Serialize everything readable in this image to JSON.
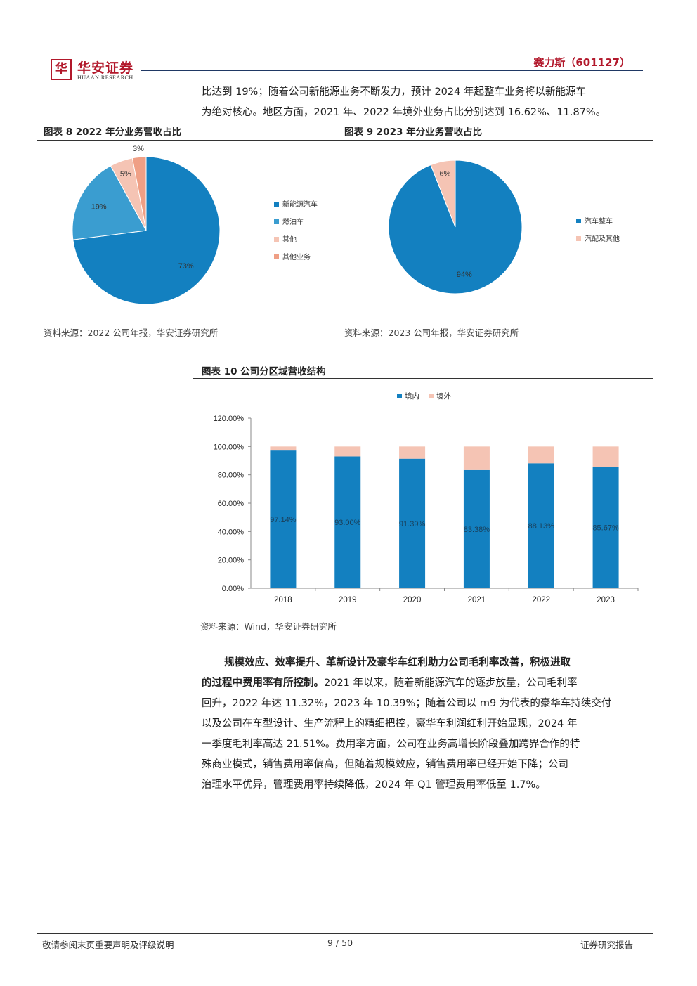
{
  "header": {
    "logo_mark": "华",
    "logo_cn": "华安证券",
    "logo_en": "HUAAN RESEARCH",
    "company": "赛力斯（601127）"
  },
  "intro": {
    "line1": "比达到 19%；随着公司新能源业务不断发力，预计 2024 年起整车业务将以新能源车",
    "line2": "为绝对核心。地区方面，2021 年、2022 年境外业务占比分别达到 16.62%、11.87%。"
  },
  "fig8": {
    "title": "图表 8 2022 年分业务营收占比",
    "source": "资料来源：2022 公司年报，华安证券研究所",
    "chart_data": {
      "type": "pie",
      "labels": [
        "新能源汽车",
        "燃油车",
        "其他",
        "其他业务"
      ],
      "values": [
        73,
        19,
        5,
        3
      ],
      "value_labels": [
        "73%",
        "19%",
        "5%",
        "3%"
      ],
      "colors": [
        "#1380c0",
        "#3a9dd0",
        "#f5c4b4",
        "#ef9f85"
      ],
      "legend_position": "right"
    }
  },
  "fig9": {
    "title": "图表 9 2023 年分业务营收占比",
    "source": "资料来源：2023 公司年报，华安证券研究所",
    "chart_data": {
      "type": "pie",
      "labels": [
        "汽车整车",
        "汽配及其他"
      ],
      "values": [
        94,
        6
      ],
      "value_labels": [
        "94%",
        "6%"
      ],
      "colors": [
        "#1380c0",
        "#f5c4b4"
      ],
      "legend_position": "right"
    }
  },
  "fig10": {
    "title": "图表  10 公司分区域营收结构",
    "source": "资料来源：Wind，华安证券研究所",
    "chart_data": {
      "type": "bar",
      "stacked": true,
      "categories": [
        "2018",
        "2019",
        "2020",
        "2021",
        "2022",
        "2023"
      ],
      "series": [
        {
          "name": "境内",
          "values": [
            97.14,
            93.0,
            91.39,
            83.38,
            88.13,
            85.67
          ],
          "color": "#1380c0",
          "labels": [
            "97.14%",
            "93.00%",
            "91.39%",
            "83.38%",
            "88.13%",
            "85.67%"
          ]
        },
        {
          "name": "境外",
          "values": [
            2.86,
            7.0,
            8.61,
            16.62,
            11.87,
            14.33
          ],
          "color": "#f5c4b4"
        }
      ],
      "y_ticks": [
        "0.00%",
        "20.00%",
        "40.00%",
        "60.00%",
        "80.00%",
        "100.00%",
        "120.00%"
      ],
      "ylim": [
        0,
        120
      ],
      "legend_position": "top"
    }
  },
  "body": {
    "bold_lead": "规模效应、效率提升、革新设计及豪华车红利助力公司毛利率改善，积极进取",
    "bold_lead2": "的过程中费用率有所控制。",
    "rest_line2": "2021 年以来，随着新能源汽车的逐步放量，公司毛利率",
    "line3": "回升，2022 年达 11.32%，2023 年 10.39%；随着公司以 m9 为代表的豪华车持续交付",
    "line4": "以及公司在车型设计、生产流程上的精细把控，豪华车利润红利开始显现，2024 年",
    "line5": "一季度毛利率高达 21.51%。费用率方面，公司在业务高增长阶段叠加跨界合作的特",
    "line6": "殊商业模式，销售费用率偏高，但随着规模效应，销售费用率已经开始下降；公司",
    "line7": "治理水平优异，管理费用率持续降低，2024 年 Q1 管理费用率低至 1.7%。"
  },
  "footer": {
    "left": "敬请参阅末页重要声明及评级说明",
    "page": "9 / 50",
    "right": "证券研究报告"
  }
}
